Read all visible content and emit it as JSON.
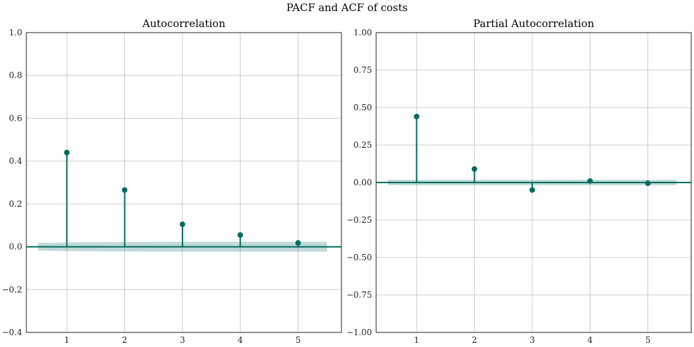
{
  "figure": {
    "suptitle": "PACF and ACF of costs"
  },
  "colors": {
    "stem": "#006b5f",
    "band": "#006b5f",
    "grid": "#cccccc",
    "spine": "#222222"
  },
  "chart_data": [
    {
      "type": "stem",
      "title": "Autocorrelation",
      "xlabel": "",
      "ylabel": "",
      "x": [
        1,
        2,
        3,
        4,
        5
      ],
      "values": [
        0.44,
        0.265,
        0.105,
        0.055,
        0.018
      ],
      "xlim": [
        0.3,
        5.75
      ],
      "ylim": [
        -0.4,
        1.0
      ],
      "xticks": [
        1,
        2,
        3,
        4,
        5
      ],
      "xtick_labels": [
        "1",
        "2",
        "3",
        "4",
        "5"
      ],
      "yticks": [
        -0.4,
        -0.2,
        0.0,
        0.2,
        0.4,
        0.6,
        0.8,
        1.0
      ],
      "ytick_labels": [
        "−0.4",
        "−0.2",
        "0.0",
        "0.2",
        "0.4",
        "0.6",
        "0.8",
        "1.0"
      ],
      "confidence_band": {
        "x": [
          0.5,
          1.0,
          2.0,
          3.0,
          4.0,
          5.0,
          5.5
        ],
        "upper": [
          0.018,
          0.02,
          0.022,
          0.023,
          0.023,
          0.023,
          0.023
        ],
        "lower": [
          -0.018,
          -0.02,
          -0.022,
          -0.023,
          -0.023,
          -0.023,
          -0.023
        ]
      },
      "grid": true
    },
    {
      "type": "stem",
      "title": "Partial Autocorrelation",
      "xlabel": "",
      "ylabel": "",
      "x": [
        1,
        2,
        3,
        4,
        5
      ],
      "values": [
        0.44,
        0.09,
        -0.05,
        0.01,
        -0.005
      ],
      "xlim": [
        0.3,
        5.75
      ],
      "ylim": [
        -1.0,
        1.0
      ],
      "xticks": [
        1,
        2,
        3,
        4,
        5
      ],
      "xtick_labels": [
        "1",
        "2",
        "3",
        "4",
        "5"
      ],
      "yticks": [
        -1.0,
        -0.75,
        -0.5,
        -0.25,
        0.0,
        0.25,
        0.5,
        0.75,
        1.0
      ],
      "ytick_labels": [
        "−1.00",
        "−0.75",
        "−0.50",
        "−0.25",
        "0.00",
        "0.25",
        "0.50",
        "0.75",
        "1.00"
      ],
      "confidence_band": {
        "x": [
          0.5,
          5.5
        ],
        "upper": [
          0.018,
          0.018
        ],
        "lower": [
          -0.018,
          -0.018
        ]
      },
      "grid": true
    }
  ]
}
